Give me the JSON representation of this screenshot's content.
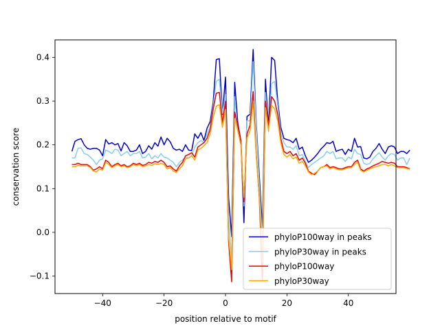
{
  "chart_data": {
    "type": "line",
    "title": "",
    "xlabel": "position relative to motif",
    "ylabel": "conservation score",
    "xlim": [
      -55.5,
      55.5
    ],
    "ylim": [
      -0.14,
      0.44
    ],
    "xticks": [
      -40,
      -20,
      0,
      20,
      40
    ],
    "yticks": [
      -0.1,
      0.0,
      0.1,
      0.2,
      0.3,
      0.4
    ],
    "grid": false,
    "legend_position": "lower-right",
    "x_start": -50,
    "series": [
      {
        "name": "phyloP100way in peaks",
        "color": "#0000cc",
        "values": [
          0.185,
          0.208,
          0.212,
          0.214,
          0.2,
          0.192,
          0.19,
          0.192,
          0.192,
          0.188,
          0.175,
          0.212,
          0.202,
          0.205,
          0.2,
          0.203,
          0.186,
          0.205,
          0.198,
          0.185,
          0.185,
          0.188,
          0.2,
          0.18,
          0.185,
          0.198,
          0.19,
          0.205,
          0.197,
          0.218,
          0.2,
          0.215,
          0.207,
          0.192,
          0.188,
          0.19,
          0.185,
          0.2,
          0.188,
          0.187,
          0.225,
          0.215,
          0.228,
          0.21,
          0.238,
          0.253,
          0.298,
          0.395,
          0.397,
          0.27,
          0.355,
          0.08,
          -0.01,
          0.343,
          0.25,
          0.21,
          0.022,
          0.265,
          0.27,
          0.418,
          0.25,
          0.13,
          0.01,
          0.35,
          0.24,
          0.4,
          0.393,
          0.3,
          0.24,
          0.215,
          0.212,
          0.21,
          0.205,
          0.215,
          0.19,
          0.195,
          0.175,
          0.16,
          0.165,
          0.172,
          0.18,
          0.19,
          0.197,
          0.205,
          0.203,
          0.208,
          0.185,
          0.188,
          0.19,
          0.178,
          0.19,
          0.185,
          0.215,
          0.195,
          0.196,
          0.17,
          0.168,
          0.172,
          0.185,
          0.192,
          0.203,
          0.19,
          0.18,
          0.195,
          0.198,
          0.195,
          0.18,
          0.185,
          0.185,
          0.18,
          0.188
        ]
      },
      {
        "name": "phyloP30way in peaks",
        "color": "#87ceeb",
        "values": [
          0.17,
          0.17,
          0.192,
          0.193,
          0.18,
          0.178,
          0.172,
          0.165,
          0.155,
          0.165,
          0.168,
          0.188,
          0.185,
          0.18,
          0.19,
          0.188,
          0.175,
          0.18,
          0.185,
          0.175,
          0.18,
          0.18,
          0.185,
          0.17,
          0.172,
          0.18,
          0.168,
          0.175,
          0.17,
          0.18,
          0.172,
          0.17,
          0.165,
          0.16,
          0.15,
          0.16,
          0.165,
          0.172,
          0.17,
          0.175,
          0.195,
          0.205,
          0.21,
          0.205,
          0.225,
          0.24,
          0.29,
          0.345,
          0.35,
          0.272,
          0.315,
          0.03,
          -0.06,
          0.31,
          0.233,
          0.2,
          0.06,
          0.255,
          0.255,
          0.39,
          0.24,
          0.11,
          -0.02,
          0.32,
          0.23,
          0.34,
          0.345,
          0.29,
          0.225,
          0.205,
          0.195,
          0.195,
          0.19,
          0.198,
          0.175,
          0.178,
          0.162,
          0.148,
          0.155,
          0.16,
          0.165,
          0.17,
          0.175,
          0.185,
          0.18,
          0.185,
          0.168,
          0.17,
          0.17,
          0.162,
          0.172,
          0.168,
          0.19,
          0.18,
          0.178,
          0.158,
          0.155,
          0.158,
          0.168,
          0.175,
          0.182,
          0.172,
          0.165,
          0.175,
          0.18,
          0.178,
          0.165,
          0.17,
          0.17,
          0.155,
          0.17
        ]
      },
      {
        "name": "phyloP100way",
        "color": "#ee0000",
        "values": [
          0.155,
          0.155,
          0.158,
          0.155,
          0.155,
          0.155,
          0.15,
          0.142,
          0.145,
          0.15,
          0.145,
          0.165,
          0.16,
          0.15,
          0.155,
          0.158,
          0.152,
          0.155,
          0.15,
          0.152,
          0.158,
          0.155,
          0.158,
          0.153,
          0.155,
          0.16,
          0.158,
          0.162,
          0.16,
          0.165,
          0.16,
          0.15,
          0.152,
          0.145,
          0.14,
          0.152,
          0.16,
          0.175,
          0.178,
          0.182,
          0.172,
          0.195,
          0.2,
          0.205,
          0.215,
          0.235,
          0.282,
          0.318,
          0.32,
          0.25,
          0.3,
          -0.02,
          -0.113,
          0.275,
          0.245,
          0.21,
          0.07,
          0.225,
          0.245,
          0.322,
          0.18,
          0.08,
          -0.11,
          0.3,
          0.24,
          0.31,
          0.3,
          0.27,
          0.215,
          0.185,
          0.18,
          0.185,
          0.175,
          0.18,
          0.165,
          0.17,
          0.158,
          0.14,
          0.135,
          0.132,
          0.14,
          0.148,
          0.15,
          0.155,
          0.148,
          0.15,
          0.148,
          0.145,
          0.145,
          0.148,
          0.15,
          0.15,
          0.16,
          0.165,
          0.145,
          0.14,
          0.145,
          0.148,
          0.152,
          0.155,
          0.158,
          0.162,
          0.16,
          0.158,
          0.16,
          0.158,
          0.15,
          0.15,
          0.15,
          0.148,
          0.145
        ]
      },
      {
        "name": "phyloP30way",
        "color": "#ffa500",
        "values": [
          0.15,
          0.15,
          0.153,
          0.152,
          0.152,
          0.152,
          0.148,
          0.14,
          0.138,
          0.145,
          0.142,
          0.16,
          0.155,
          0.148,
          0.152,
          0.155,
          0.15,
          0.152,
          0.148,
          0.15,
          0.155,
          0.152,
          0.155,
          0.15,
          0.152,
          0.155,
          0.153,
          0.157,
          0.155,
          0.158,
          0.155,
          0.145,
          0.148,
          0.14,
          0.137,
          0.145,
          0.152,
          0.168,
          0.17,
          0.175,
          0.165,
          0.188,
          0.192,
          0.198,
          0.205,
          0.225,
          0.262,
          0.288,
          0.292,
          0.24,
          0.28,
          -0.01,
          -0.085,
          0.26,
          0.232,
          0.2,
          0.08,
          0.215,
          0.232,
          0.3,
          0.175,
          0.085,
          -0.07,
          0.285,
          0.232,
          0.29,
          0.282,
          0.255,
          0.205,
          0.178,
          0.172,
          0.178,
          0.168,
          0.172,
          0.158,
          0.162,
          0.152,
          0.138,
          0.132,
          0.135,
          0.14,
          0.148,
          0.15,
          0.152,
          0.145,
          0.148,
          0.145,
          0.143,
          0.143,
          0.145,
          0.148,
          0.148,
          0.155,
          0.16,
          0.142,
          0.138,
          0.142,
          0.145,
          0.148,
          0.15,
          0.152,
          0.155,
          0.155,
          0.152,
          0.155,
          0.152,
          0.148,
          0.148,
          0.148,
          0.146,
          0.144
        ]
      }
    ]
  }
}
